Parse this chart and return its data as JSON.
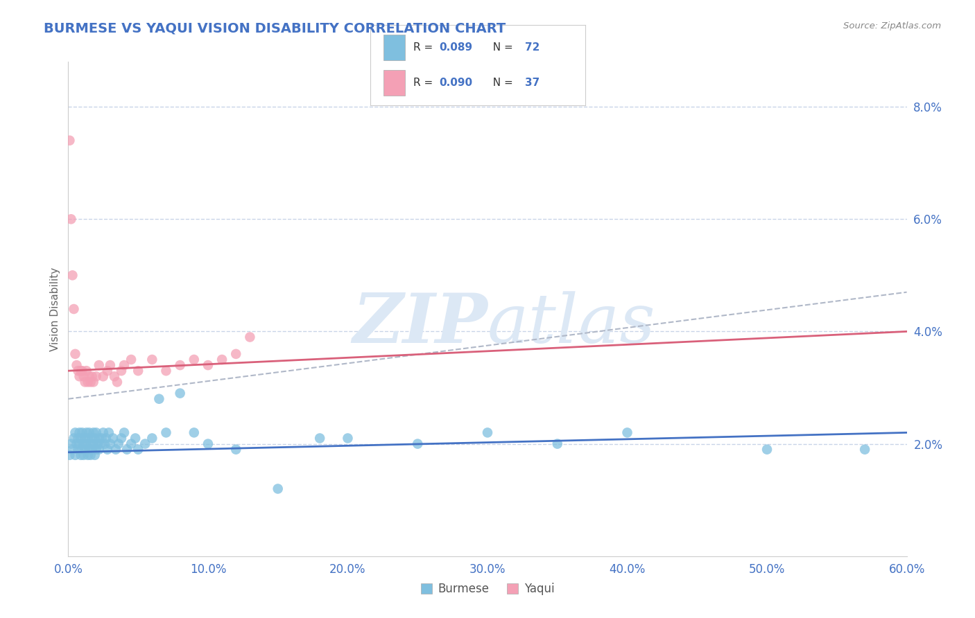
{
  "title": "BURMESE VS YAQUI VISION DISABILITY CORRELATION CHART",
  "source_text": "Source: ZipAtlas.com",
  "ylabel": "Vision Disability",
  "xlim": [
    0.0,
    0.6
  ],
  "ylim": [
    0.0,
    0.088
  ],
  "xtick_labels": [
    "0.0%",
    "10.0%",
    "20.0%",
    "30.0%",
    "40.0%",
    "50.0%",
    "60.0%"
  ],
  "xtick_vals": [
    0.0,
    0.1,
    0.2,
    0.3,
    0.4,
    0.5,
    0.6
  ],
  "ytick_labels": [
    "2.0%",
    "4.0%",
    "6.0%",
    "8.0%"
  ],
  "ytick_vals": [
    0.02,
    0.04,
    0.06,
    0.08
  ],
  "burmese_color": "#7fbfdf",
  "yaqui_color": "#f4a0b5",
  "burmese_line_color": "#4472c4",
  "yaqui_line_color": "#d9607a",
  "dashed_line_color": "#b0b8c8",
  "legend_burmese_R": "0.089",
  "legend_burmese_N": "72",
  "legend_yaqui_R": "0.090",
  "legend_yaqui_N": "37",
  "burmese_scatter_x": [
    0.001,
    0.002,
    0.003,
    0.004,
    0.005,
    0.005,
    0.006,
    0.007,
    0.007,
    0.008,
    0.008,
    0.009,
    0.009,
    0.01,
    0.01,
    0.011,
    0.011,
    0.012,
    0.012,
    0.013,
    0.013,
    0.014,
    0.014,
    0.015,
    0.015,
    0.016,
    0.016,
    0.017,
    0.017,
    0.018,
    0.018,
    0.019,
    0.019,
    0.02,
    0.02,
    0.021,
    0.022,
    0.022,
    0.023,
    0.024,
    0.025,
    0.026,
    0.027,
    0.028,
    0.029,
    0.03,
    0.032,
    0.034,
    0.036,
    0.038,
    0.04,
    0.042,
    0.045,
    0.048,
    0.05,
    0.055,
    0.06,
    0.065,
    0.07,
    0.08,
    0.09,
    0.1,
    0.12,
    0.15,
    0.18,
    0.2,
    0.25,
    0.3,
    0.35,
    0.4,
    0.5,
    0.57
  ],
  "burmese_scatter_y": [
    0.018,
    0.02,
    0.019,
    0.021,
    0.022,
    0.018,
    0.02,
    0.019,
    0.021,
    0.022,
    0.02,
    0.018,
    0.021,
    0.019,
    0.022,
    0.02,
    0.018,
    0.021,
    0.019,
    0.022,
    0.02,
    0.018,
    0.021,
    0.019,
    0.022,
    0.02,
    0.018,
    0.021,
    0.019,
    0.022,
    0.02,
    0.018,
    0.021,
    0.019,
    0.022,
    0.02,
    0.019,
    0.021,
    0.02,
    0.021,
    0.022,
    0.02,
    0.021,
    0.019,
    0.022,
    0.02,
    0.021,
    0.019,
    0.02,
    0.021,
    0.022,
    0.019,
    0.02,
    0.021,
    0.019,
    0.02,
    0.021,
    0.028,
    0.022,
    0.029,
    0.022,
    0.02,
    0.019,
    0.012,
    0.021,
    0.021,
    0.02,
    0.022,
    0.02,
    0.022,
    0.019,
    0.019
  ],
  "yaqui_scatter_x": [
    0.001,
    0.002,
    0.003,
    0.004,
    0.005,
    0.006,
    0.007,
    0.008,
    0.009,
    0.01,
    0.011,
    0.012,
    0.013,
    0.014,
    0.015,
    0.016,
    0.017,
    0.018,
    0.02,
    0.022,
    0.025,
    0.028,
    0.03,
    0.033,
    0.035,
    0.038,
    0.04,
    0.045,
    0.05,
    0.06,
    0.07,
    0.08,
    0.09,
    0.1,
    0.11,
    0.12,
    0.13
  ],
  "yaqui_scatter_y": [
    0.074,
    0.06,
    0.05,
    0.044,
    0.036,
    0.034,
    0.033,
    0.032,
    0.033,
    0.033,
    0.032,
    0.031,
    0.033,
    0.031,
    0.032,
    0.031,
    0.032,
    0.031,
    0.032,
    0.034,
    0.032,
    0.033,
    0.034,
    0.032,
    0.031,
    0.033,
    0.034,
    0.035,
    0.033,
    0.035,
    0.033,
    0.034,
    0.035,
    0.034,
    0.035,
    0.036,
    0.039
  ],
  "burmese_trend_x": [
    0.0,
    0.6
  ],
  "burmese_trend_y": [
    0.0185,
    0.022
  ],
  "yaqui_trend_x": [
    0.0,
    0.6
  ],
  "yaqui_trend_y": [
    0.033,
    0.04
  ],
  "dashed_trend_x": [
    0.0,
    0.6
  ],
  "dashed_trend_y": [
    0.028,
    0.047
  ],
  "background_color": "#ffffff",
  "grid_color": "#c8d4e8",
  "watermark_color": "#dce8f5",
  "title_color": "#4472c4",
  "axis_label_color": "#666666",
  "tick_label_color": "#4472c4",
  "legend_R_color": "#333333",
  "legend_N_color": "#4472c4"
}
